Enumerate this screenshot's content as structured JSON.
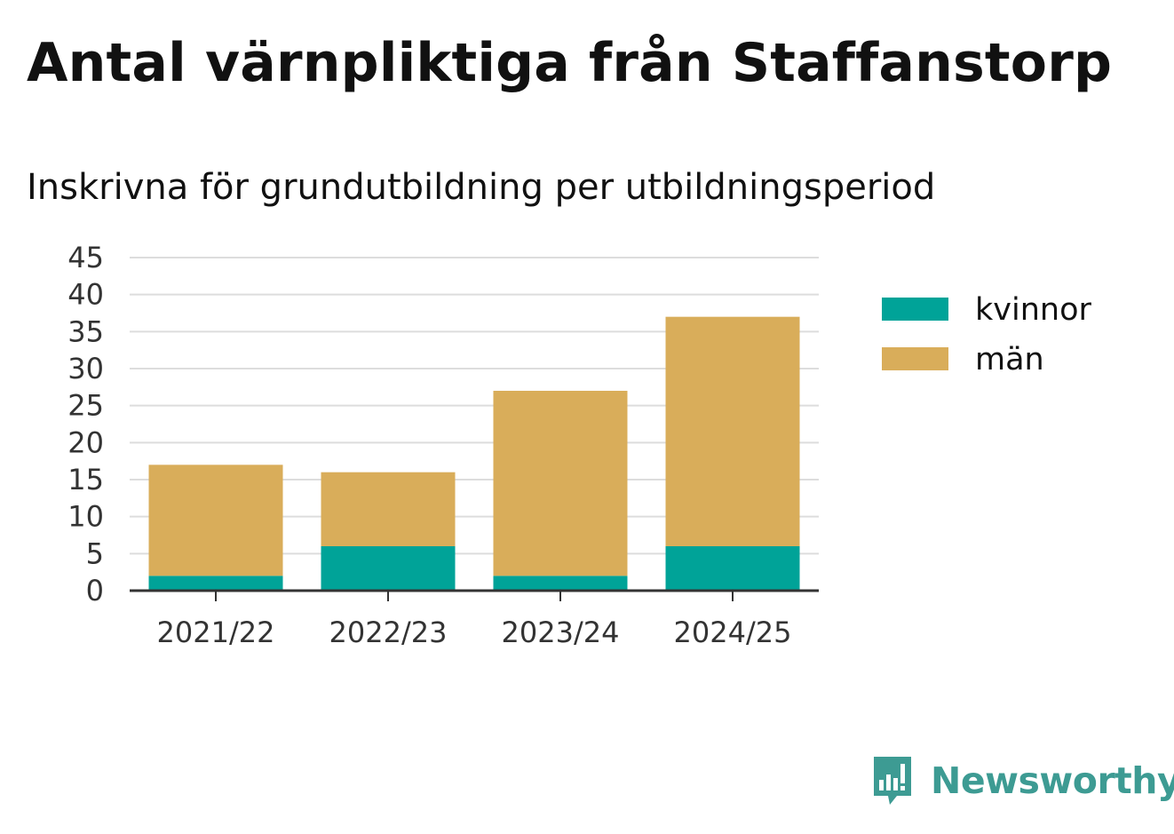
{
  "chart_data": {
    "type": "bar",
    "stacked": true,
    "title": "Antal värnpliktiga från Staffanstorp",
    "subtitle": "Inskrivna för grundutbildning per utbildningsperiod",
    "categories": [
      "2021/22",
      "2022/23",
      "2023/24",
      "2024/25"
    ],
    "series": [
      {
        "name": "kvinnor",
        "values": [
          2,
          6,
          2,
          6
        ],
        "color": "#00a398"
      },
      {
        "name": "män",
        "values": [
          15,
          10,
          25,
          31
        ],
        "color": "#d9ad5a"
      }
    ],
    "ylim": [
      0,
      45
    ],
    "yticks": [
      0,
      5,
      10,
      15,
      20,
      25,
      30,
      35,
      40,
      45
    ],
    "grid": true,
    "legend_position": "right"
  },
  "brand": {
    "name": "Newsworthy",
    "color": "#3d9b93",
    "icon": "newsworthy-logo-icon"
  }
}
